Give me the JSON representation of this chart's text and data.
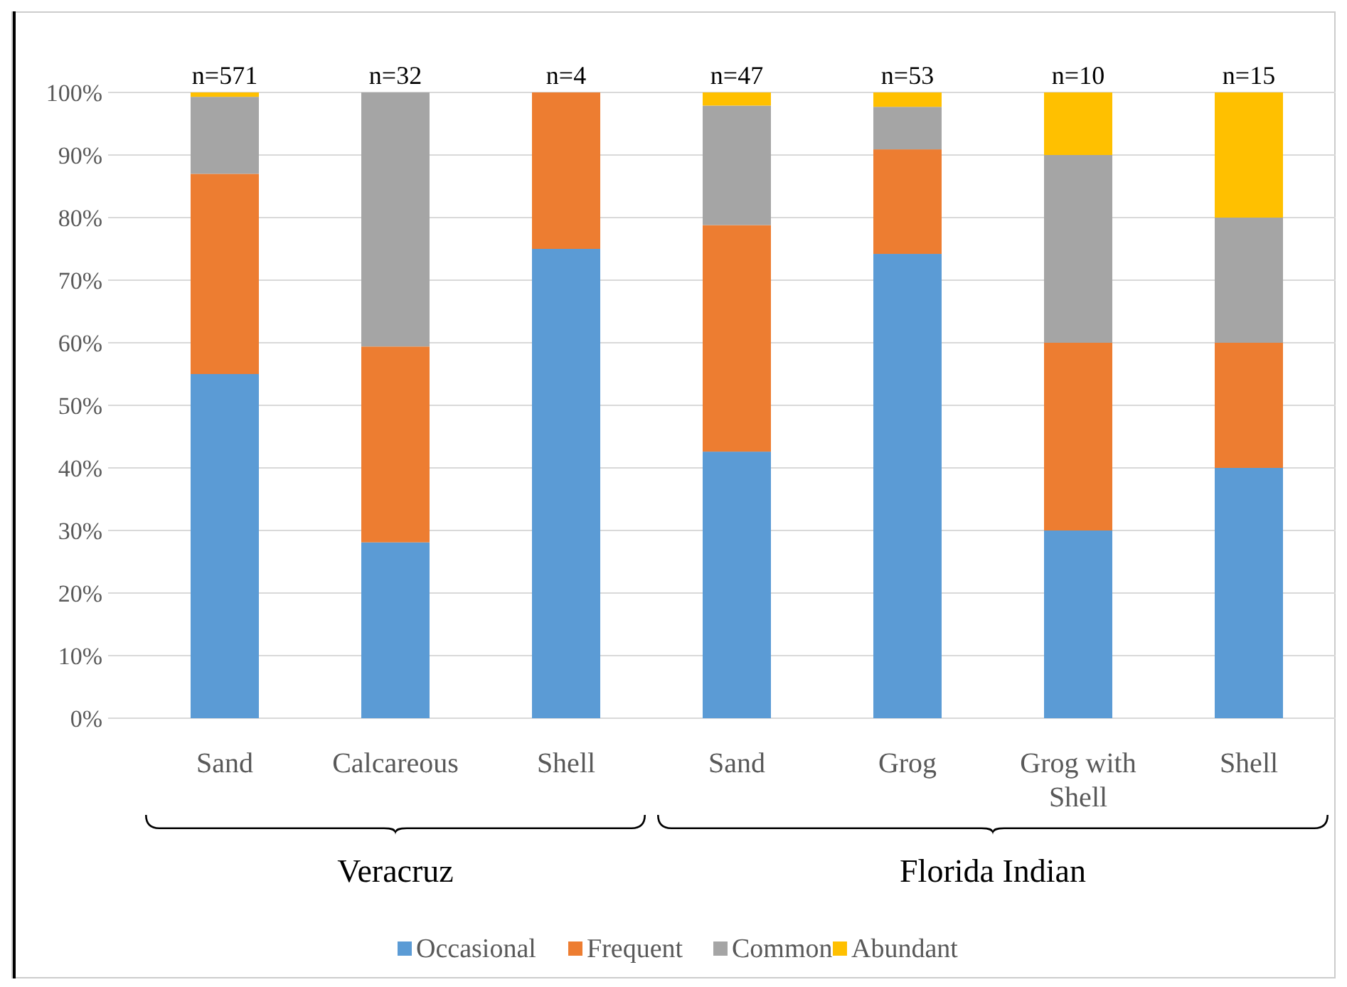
{
  "chart_data": {
    "type": "bar",
    "stacked": true,
    "categories": [
      "Sand",
      "Calcareous",
      "Shell",
      "Sand",
      "Grog",
      "Grog with Shell",
      "Shell"
    ],
    "series": [
      {
        "name": "Occasional",
        "color": "#5b9bd5",
        "values": [
          55,
          28.1,
          75,
          42.6,
          74.2,
          30,
          40
        ]
      },
      {
        "name": "Frequent",
        "color": "#ed7d31",
        "values": [
          32,
          31.3,
          25,
          36.2,
          16.7,
          30,
          20
        ]
      },
      {
        "name": "Common",
        "color": "#a5a5a5",
        "values": [
          12.3,
          40.6,
          0,
          19.1,
          6.8,
          30,
          20
        ]
      },
      {
        "name": "Abundant",
        "color": "#ffc000",
        "values": [
          0.7,
          0,
          0,
          2.1,
          2.3,
          10,
          20
        ]
      }
    ],
    "ylim": [
      0,
      100
    ],
    "yticks": [
      {
        "value": 0,
        "label": "0%"
      },
      {
        "value": 10,
        "label": "10%"
      },
      {
        "value": 20,
        "label": "20%"
      },
      {
        "value": 30,
        "label": "30%"
      },
      {
        "value": 40,
        "label": "40%"
      },
      {
        "value": 50,
        "label": "50%"
      },
      {
        "value": 60,
        "label": "60%"
      },
      {
        "value": 70,
        "label": "70%"
      },
      {
        "value": 80,
        "label": "80%"
      },
      {
        "value": 90,
        "label": "90%"
      },
      {
        "value": 100,
        "label": "100%"
      }
    ],
    "grid": "y",
    "legend": "bottom",
    "annotations": [
      "n=571",
      "n=32",
      "n=4",
      "n=47",
      "n=53",
      "n=10",
      "n=15",
      "Veracruz",
      "Florida Indian"
    ]
  }
}
